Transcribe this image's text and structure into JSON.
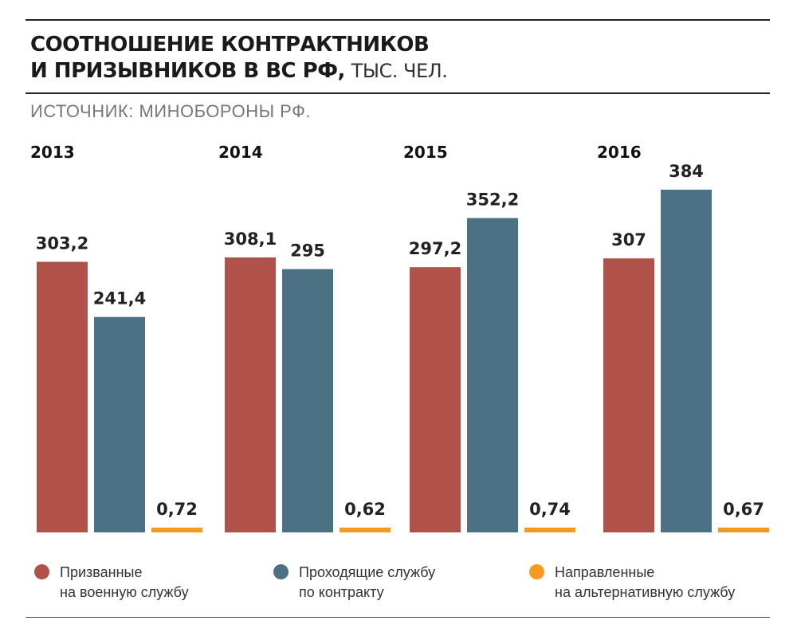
{
  "header": {
    "title_line1": "СООТНОШЕНИЕ КОНТРАКТНИКОВ",
    "title_line2": "И ПРИЗЫВНИКОВ В ВС РФ,",
    "title_unit": "ТЫС. ЧЕЛ.",
    "source": "ИСТОЧНИК: МИНОБОРОНЫ РФ."
  },
  "legend": [
    {
      "line1": "Призванные",
      "line2": "на военную службу"
    },
    {
      "line1": "Проходящие службу",
      "line2": "по контракту"
    },
    {
      "line1": "Направленные",
      "line2": "на альтернативную службу"
    }
  ],
  "chart_data": {
    "type": "bar",
    "categories": [
      "2013",
      "2014",
      "2015",
      "2016"
    ],
    "series": [
      {
        "name": "Призванные на военную службу",
        "values": [
          303.2,
          308.1,
          297.2,
          307
        ],
        "labels": [
          "303,2",
          "308,1",
          "297,2",
          "307"
        ],
        "color": "#b0524a"
      },
      {
        "name": "Проходящие службу по контракту",
        "values": [
          241.4,
          295,
          352.2,
          384
        ],
        "labels": [
          "241,4",
          "295",
          "352,2",
          "384"
        ],
        "color": "#4c7185"
      },
      {
        "name": "Направленные на альтернативную службу",
        "values": [
          0.72,
          0.62,
          0.74,
          0.67
        ],
        "labels": [
          "0,72",
          "0,62",
          "0,74",
          "0,67"
        ],
        "color": "#f39a1f"
      }
    ],
    "ylim": [
      0,
      384
    ],
    "grid": false,
    "legend_position": "bottom"
  }
}
